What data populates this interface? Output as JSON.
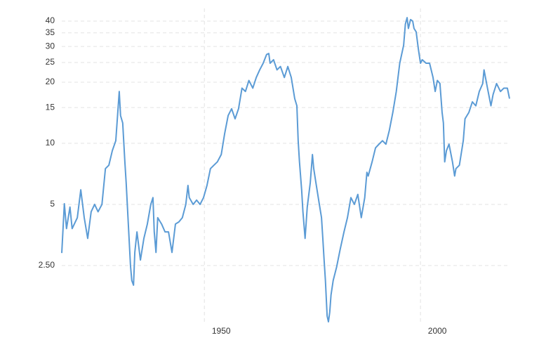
{
  "chart_data": {
    "type": "line",
    "log_scale": true,
    "grid": true,
    "x": [
      1917.0,
      1917.3,
      1917.6,
      1918.1,
      1918.9,
      1919.4,
      1920.6,
      1921.4,
      1922.2,
      1923.0,
      1923.8,
      1924.6,
      1925.4,
      1926.3,
      1927.1,
      1927.9,
      1928.7,
      1929.5,
      1930.3,
      1930.6,
      1931.1,
      1931.6,
      1931.9,
      1932.4,
      1932.9,
      1933.2,
      1933.6,
      1933.9,
      1934.4,
      1935.2,
      1936.0,
      1936.8,
      1937.6,
      1938.1,
      1938.4,
      1938.8,
      1939.2,
      1940.1,
      1940.9,
      1941.7,
      1942.5,
      1943.3,
      1944.1,
      1944.9,
      1945.7,
      1946.2,
      1946.5,
      1947.4,
      1948.2,
      1949.0,
      1949.8,
      1950.6,
      1951.4,
      1952.2,
      1953.0,
      1953.9,
      1954.7,
      1955.5,
      1956.3,
      1957.1,
      1957.9,
      1958.7,
      1959.5,
      1960.3,
      1961.2,
      1962.0,
      1962.8,
      1963.6,
      1964.4,
      1964.9,
      1965.2,
      1966.0,
      1966.8,
      1967.6,
      1968.5,
      1969.3,
      1970.1,
      1970.9,
      1971.4,
      1971.7,
      1972.0,
      1972.5,
      1972.8,
      1973.3,
      1973.8,
      1974.5,
      1975.0,
      1975.3,
      1975.8,
      1976.6,
      1977.1,
      1977.4,
      1977.7,
      1978.0,
      1978.4,
      1978.7,
      1979.0,
      1979.3,
      1979.8,
      1980.6,
      1981.4,
      1982.3,
      1983.1,
      1983.9,
      1984.7,
      1985.5,
      1986.3,
      1987.1,
      1987.6,
      1987.9,
      1988.8,
      1989.6,
      1990.4,
      1991.2,
      1992.0,
      1992.8,
      1993.6,
      1994.4,
      1995.2,
      1996.1,
      1996.5,
      1996.9,
      1997.2,
      1997.7,
      1998.2,
      1998.5,
      1999.0,
      1999.5,
      2000.0,
      2000.4,
      2001.3,
      2002.1,
      2002.9,
      2003.4,
      2003.9,
      2004.5,
      2005.0,
      2005.3,
      2005.6,
      2006.0,
      2006.6,
      2007.4,
      2007.9,
      2008.2,
      2009.0,
      2009.9,
      2010.3,
      2011.2,
      2012.0,
      2012.8,
      2013.6,
      2014.4,
      2014.7,
      2015.5,
      2016.3,
      2016.8,
      2017.6,
      2018.5,
      2019.3,
      2020.1,
      2020.6
    ],
    "series": [
      {
        "color": "#5b9bd5",
        "values": [
          2.88,
          3.81,
          5.04,
          3.8,
          4.85,
          3.8,
          4.3,
          5.9,
          4.3,
          3.4,
          4.6,
          5.0,
          4.6,
          5.0,
          7.5,
          7.8,
          9.2,
          10.3,
          18.0,
          13.7,
          12.6,
          8.1,
          6.4,
          4.0,
          2.5,
          2.11,
          2.0,
          2.9,
          3.66,
          2.66,
          3.4,
          4.0,
          5.0,
          5.4,
          3.66,
          2.9,
          4.3,
          4.0,
          3.66,
          3.66,
          2.9,
          4.0,
          4.1,
          4.3,
          5.0,
          6.2,
          5.4,
          5.0,
          5.25,
          5.0,
          5.4,
          6.2,
          7.5,
          7.8,
          8.1,
          8.8,
          11.2,
          13.7,
          14.8,
          13.2,
          14.8,
          18.7,
          18.0,
          20.4,
          18.7,
          21.1,
          23.0,
          24.8,
          27.4,
          27.7,
          24.8,
          25.8,
          23.0,
          23.9,
          21.1,
          23.9,
          21.1,
          16.6,
          15.3,
          10.3,
          8.1,
          5.9,
          4.6,
          3.4,
          4.85,
          6.4,
          8.8,
          7.5,
          6.4,
          5.0,
          4.3,
          3.4,
          2.66,
          2.11,
          1.41,
          1.32,
          1.47,
          1.79,
          2.11,
          2.46,
          2.99,
          3.66,
          4.3,
          5.4,
          5.0,
          5.6,
          4.3,
          5.4,
          7.2,
          6.9,
          8.1,
          9.5,
          9.9,
          10.3,
          9.9,
          11.6,
          14.2,
          18.0,
          24.8,
          30.4,
          38.6,
          41.6,
          36.8,
          40.7,
          40.0,
          36.8,
          35.4,
          29.2,
          24.8,
          25.8,
          24.8,
          24.8,
          21.1,
          18.0,
          20.4,
          19.7,
          14.2,
          12.6,
          8.1,
          9.2,
          9.9,
          8.1,
          6.9,
          7.5,
          7.8,
          10.3,
          13.2,
          14.2,
          16.0,
          15.3,
          18.0,
          19.7,
          23.0,
          18.7,
          15.3,
          17.4,
          19.7,
          18.0,
          18.7,
          18.7,
          16.6
        ]
      }
    ],
    "xlim": [
      1917,
      2020.6
    ],
    "xticks": [
      1950,
      2000
    ],
    "ylim": [
      1.3,
      43.5
    ],
    "yticks": [
      {
        "value": 2.5,
        "label": "2.50"
      },
      5,
      10,
      15,
      20,
      25,
      30,
      35,
      40
    ]
  }
}
